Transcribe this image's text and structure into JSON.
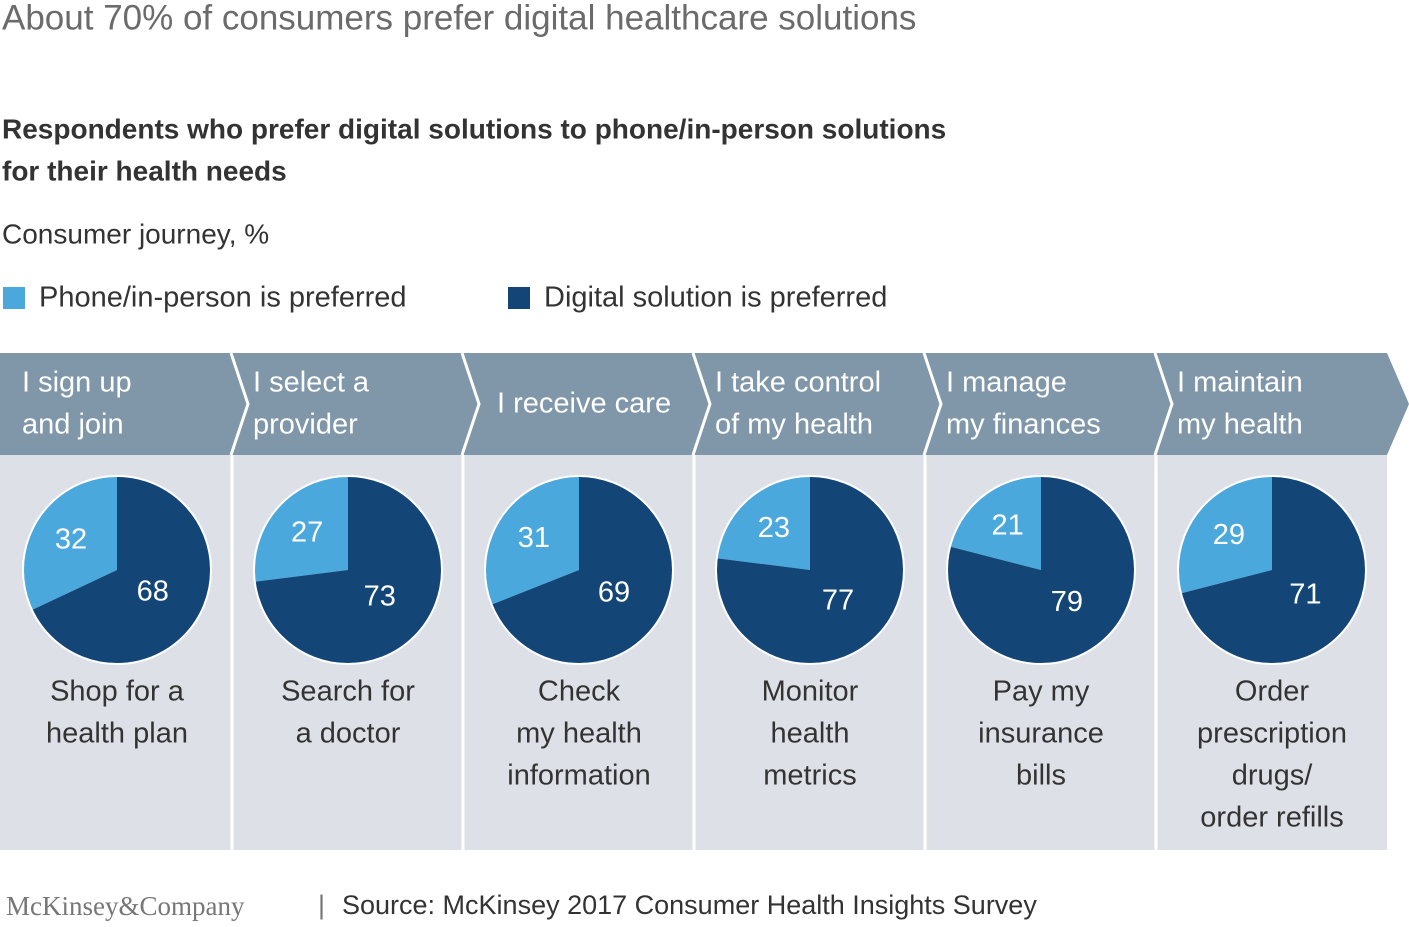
{
  "title": "About 70% of consumers prefer digital healthcare solutions",
  "subtitle": [
    "Respondents who prefer digital solutions to phone/in-person solutions",
    "for their health needs"
  ],
  "caption": "Consumer journey, %",
  "legend": [
    {
      "name": "Phone/in-person is preferred",
      "color": "#4aa8dc"
    },
    {
      "name": "Digital solution is preferred",
      "color": "#134677"
    }
  ],
  "chart_data": [
    {
      "type": "pie",
      "stage": [
        "I sign up",
        "and join"
      ],
      "label": [
        "Shop for a",
        "health plan"
      ],
      "values": [
        32,
        68
      ]
    },
    {
      "type": "pie",
      "stage": [
        "I select a",
        "provider"
      ],
      "label": [
        "Search for",
        "a doctor"
      ],
      "values": [
        27,
        73
      ]
    },
    {
      "type": "pie",
      "stage": [
        "I receive care"
      ],
      "label": [
        "Check",
        "my health",
        "information"
      ],
      "values": [
        31,
        69
      ]
    },
    {
      "type": "pie",
      "stage": [
        "I take control",
        "of my health"
      ],
      "label": [
        "Monitor",
        "health",
        "metrics"
      ],
      "values": [
        23,
        77
      ]
    },
    {
      "type": "pie",
      "stage": [
        "I manage",
        "my finances"
      ],
      "label": [
        "Pay my",
        "insurance",
        "bills"
      ],
      "values": [
        21,
        79
      ]
    },
    {
      "type": "pie",
      "stage": [
        "I maintain",
        "my health"
      ],
      "label": [
        "Order",
        "prescription",
        "drugs/",
        "order refills"
      ],
      "values": [
        29,
        71
      ]
    }
  ],
  "footer": {
    "brand": "McKinsey&Company",
    "separator": "|",
    "source": "Source: McKinsey 2017 Consumer Health Insights Survey"
  }
}
